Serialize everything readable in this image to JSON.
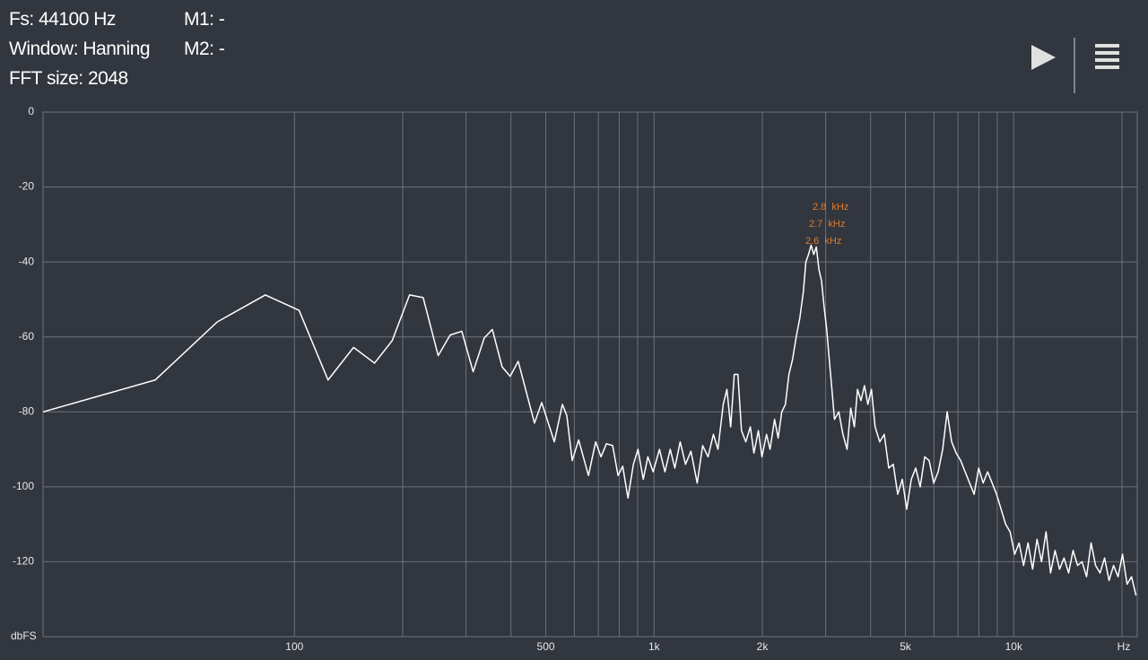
{
  "header": {
    "fs": "Fs: 44100 Hz",
    "window": "Window: Hanning",
    "fft_size": "FFT size: 2048",
    "m1": "M1: -",
    "m2": "M2: -"
  },
  "chart_data": {
    "type": "line",
    "x_unit": "Hz",
    "y_unit": "dbFS",
    "xscale": "log",
    "xlim": [
      20,
      22050
    ],
    "ylim": [
      -140,
      0
    ],
    "xticks": [
      100,
      500,
      {
        "value": 1000,
        "label": "1k"
      },
      {
        "value": 2000,
        "label": "2k"
      },
      {
        "value": 5000,
        "label": "5k"
      },
      {
        "value": 10000,
        "label": "10k"
      }
    ],
    "xgrid": [
      100,
      200,
      300,
      400,
      500,
      600,
      700,
      800,
      900,
      1000,
      2000,
      3000,
      4000,
      5000,
      6000,
      7000,
      8000,
      9000,
      10000,
      20000
    ],
    "yticks": [
      0,
      -20,
      -40,
      -60,
      -80,
      -100,
      -120
    ],
    "grid": true,
    "annotations": [
      "2.8  kHz",
      "2.7  kHz",
      "2.6  kHz"
    ],
    "annotation_color": "#e07b2a",
    "series": [
      {
        "color": "#ffffff",
        "x": [
          20,
          41,
          61,
          83,
          103,
          124,
          146,
          167,
          187,
          209,
          228,
          251,
          271,
          292,
          314,
          337,
          355,
          378,
          398,
          419,
          465,
          487,
          528,
          556,
          572,
          592,
          617,
          657,
          688,
          712,
          737,
          767,
          794,
          818,
          846,
          876,
          902,
          933,
          961,
          994,
          1035,
          1072,
          1109,
          1142,
          1182,
          1223,
          1266,
          1318,
          1365,
          1413,
          1462,
          1505,
          1557,
          1594,
          1633,
          1671,
          1710,
          1750,
          1799,
          1852,
          1895,
          1950,
          1995,
          2054,
          2101,
          2163,
          2213,
          2265,
          2318,
          2371,
          2427,
          2484,
          2542,
          2600,
          2643,
          2688,
          2733,
          2779,
          2826,
          2873,
          2921,
          2970,
          3020,
          3070,
          3122,
          3174,
          3263,
          3350,
          3440,
          3522,
          3605,
          3678,
          3760,
          3846,
          3930,
          4022,
          4117,
          4240,
          4365,
          4493,
          4624,
          4758,
          4900,
          5040,
          5190,
          5340,
          5495,
          5655,
          5820,
          5990,
          6165,
          6345,
          6530,
          6720,
          6918,
          7120,
          7325,
          7540,
          7760,
          7990,
          8220,
          8460,
          8710,
          8960,
          9225,
          9495,
          9770,
          10060,
          10350,
          10650,
          10960,
          11285,
          11610,
          11950,
          12300,
          12660,
          13030,
          13410,
          13800,
          14210,
          14620,
          15050,
          15490,
          15940,
          16410,
          16890,
          17380,
          17890,
          18410,
          18950,
          19500,
          20070,
          20660,
          21260,
          21880
        ],
        "values": [
          -80,
          -71.5,
          -56,
          -48.8,
          -52.9,
          -71.5,
          -62.8,
          -67,
          -61,
          -48.8,
          -49.5,
          -65,
          -59.5,
          -58.5,
          -69.3,
          -60.3,
          -58,
          -68,
          -70.5,
          -66.5,
          -83,
          -77.5,
          -88,
          -78,
          -81,
          -93,
          -87.5,
          -97,
          -88,
          -92,
          -88.5,
          -89,
          -97,
          -94.5,
          -103,
          -94,
          -90,
          -98,
          -92,
          -96,
          -90,
          -96,
          -90,
          -95,
          -88,
          -94,
          -90.5,
          -99,
          -89,
          -92,
          -86,
          -90,
          -78,
          -74,
          -84,
          -70,
          -70,
          -85,
          -88,
          -84,
          -91,
          -85,
          -92,
          -86,
          -90,
          -82,
          -87,
          -80,
          -78,
          -70,
          -66,
          -60,
          -55,
          -48,
          -40,
          -38,
          -35.5,
          -38,
          -36,
          -42,
          -45,
          -52,
          -58,
          -66,
          -74,
          -82,
          -80,
          -86,
          -90,
          -79,
          -84,
          -74,
          -77,
          -73,
          -78,
          -74,
          -84,
          -88,
          -86,
          -95,
          -94,
          -102,
          -98,
          -106,
          -98,
          -95,
          -100,
          -92,
          -93,
          -99,
          -96,
          -90,
          -80,
          -88,
          -91,
          -93,
          -96,
          -99,
          -102,
          -95,
          -99,
          -96,
          -99,
          -102,
          -106,
          -110,
          -112,
          -118,
          -115,
          -121,
          -115,
          -122,
          -114,
          -120,
          -112,
          -123,
          -117,
          -122,
          -119,
          -123,
          -117,
          -121,
          -120,
          -124,
          -115,
          -121,
          -123,
          -119,
          -125,
          -121,
          -124,
          -118,
          -126,
          -124,
          -129
        ]
      }
    ]
  }
}
